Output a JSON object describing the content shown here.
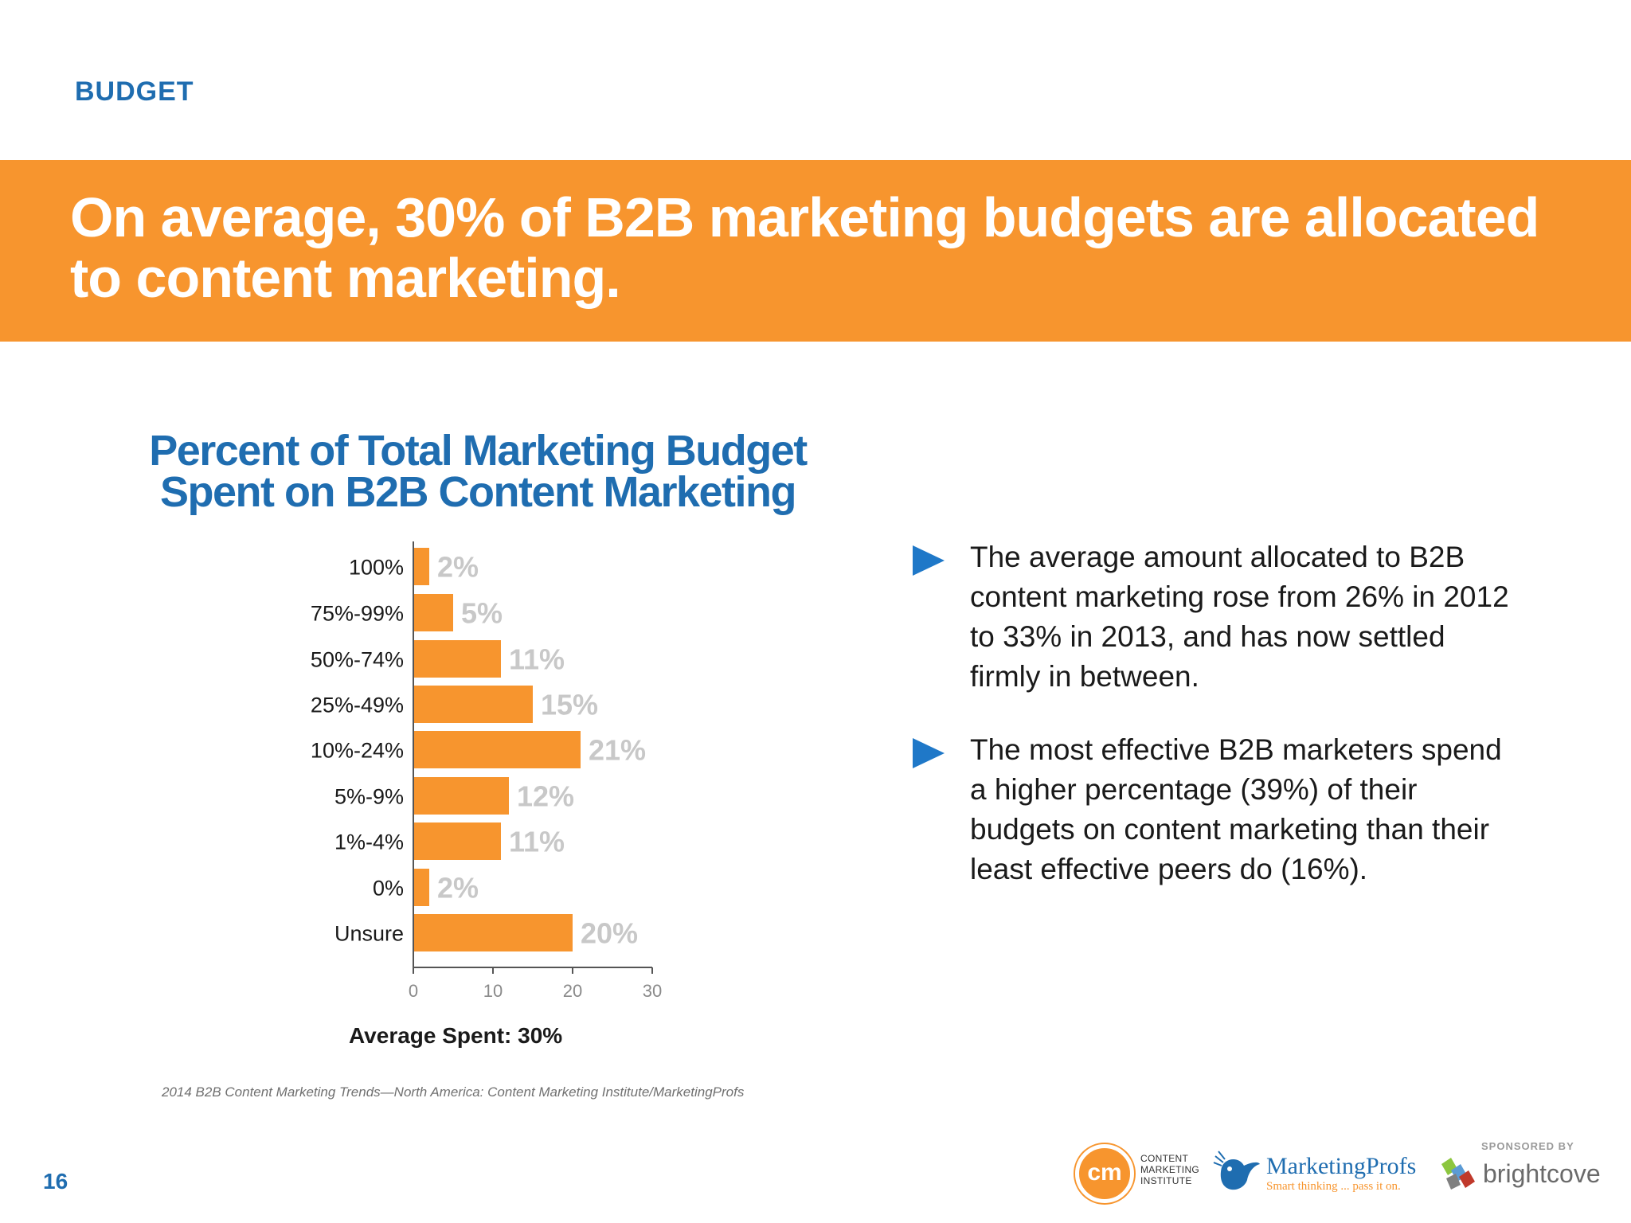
{
  "section": "BUDGET",
  "headline": "On average, 30% of B2B marketing budgets are allocated to content marketing.",
  "chart_data": {
    "type": "bar",
    "orientation": "horizontal",
    "title": "Percent of Total Marketing Budget Spent on B2B Content Marketing",
    "categories": [
      "100%",
      "75%-99%",
      "50%-74%",
      "25%-49%",
      "10%-24%",
      "5%-9%",
      "1%-4%",
      "0%",
      "Unsure"
    ],
    "values": [
      2,
      5,
      11,
      15,
      21,
      12,
      11,
      2,
      20
    ],
    "value_labels": [
      "2%",
      "5%",
      "11%",
      "15%",
      "21%",
      "12%",
      "11%",
      "2%",
      "20%"
    ],
    "xlim": [
      0,
      30
    ],
    "xticks": [
      0,
      10,
      20,
      30
    ],
    "grid": false,
    "colors": {
      "bar": "#f7952e",
      "value_label": "#c8c8c8",
      "axis": "#555555"
    }
  },
  "average_note": "Average Spent: 30%",
  "source": "2014 B2B Content Marketing Trends—North America: Content Marketing Institute/MarketingProfs",
  "bullets": [
    {
      "text": "The average amount allocated to B2B content marketing rose from 26% in 2012 to 33% in 2013, and has now settled firmly in between.",
      "icon": "triangle-right-icon"
    },
    {
      "text": "The most effective B2B marketers spend a higher percentage (39%) of their budgets on content marketing than their least effective peers do (16%).",
      "icon": "triangle-right-icon"
    }
  ],
  "page_number": "16",
  "footer": {
    "cmi_badge": "cm",
    "cmi_lines": [
      "CONTENT",
      "MARKETING",
      "INSTITUTE"
    ],
    "mp_name": "MarketingProfs",
    "mp_tagline": "Smart thinking ... pass it on.",
    "sponsored_by": "SPONSORED BY",
    "sponsor_name": "brightcove"
  },
  "colors": {
    "brand_blue": "#1f6db0",
    "brand_orange": "#f7952e",
    "bullet_blue": "#1f78c8"
  }
}
